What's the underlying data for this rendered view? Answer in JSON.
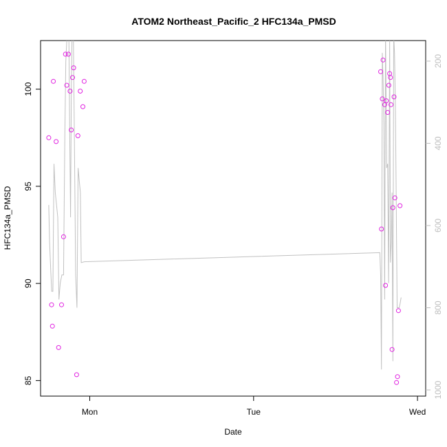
{
  "chart_data": {
    "type": "scatter",
    "title": "ATOM2 Northeast_Pacific_2 HFC134a_PMSD",
    "xlabel": "Date",
    "ylabel": "HFC134a_PMSD",
    "x_ticks": [
      "Mon",
      "Tue",
      "Wed"
    ],
    "y_ticks": [
      "85",
      "90",
      "95",
      "100"
    ],
    "y2_ticks": [
      "200",
      "400",
      "600",
      "800",
      "1000"
    ],
    "xlim": [
      -0.3,
      2.05
    ],
    "ylim": [
      84.2,
      102.5
    ],
    "y2lim": [
      1015,
      150
    ],
    "y2_reversed": true,
    "colors": {
      "points": "#e020e0",
      "line": "#c0c0c0",
      "right_axis": "#bebebe",
      "axes": "#000000"
    },
    "series": [
      {
        "kind": "points",
        "x": [
          -0.25,
          -0.233,
          -0.228,
          -0.222,
          -0.205,
          -0.19,
          -0.172,
          -0.16,
          -0.148,
          -0.14,
          -0.13,
          -0.12,
          -0.113,
          -0.105,
          -0.098,
          -0.08,
          -0.072,
          -0.058,
          -0.042,
          -0.034,
          1.775,
          1.78,
          1.785,
          1.79,
          1.8,
          1.805,
          1.81,
          1.818,
          1.825,
          1.83,
          1.835,
          1.838,
          1.845,
          1.85,
          1.857,
          1.862,
          1.872,
          1.878,
          1.884,
          1.893
        ],
        "y": [
          97.5,
          88.9,
          87.8,
          100.4,
          97.3,
          86.7,
          88.9,
          92.4,
          101.8,
          100.2,
          101.8,
          99.9,
          97.9,
          100.6,
          101.1,
          85.3,
          97.6,
          99.9,
          99.1,
          100.4,
          100.9,
          92.8,
          99.5,
          101.5,
          99.2,
          89.9,
          99.4,
          98.8,
          100.2,
          100.8,
          100.6,
          99.2,
          86.6,
          93.9,
          99.6,
          94.4,
          84.9,
          85.2,
          88.6,
          94.0
        ]
      },
      {
        "kind": "line",
        "axis": "right",
        "x": [
          -0.25,
          -0.245,
          -0.238,
          -0.232,
          -0.225,
          -0.218,
          -0.21,
          -0.195,
          -0.188,
          -0.18,
          -0.17,
          -0.16,
          -0.152,
          -0.146,
          -0.14,
          -0.132,
          -0.127,
          -0.122,
          -0.117,
          -0.112,
          -0.107,
          -0.1,
          -0.093,
          -0.086,
          -0.078,
          -0.071,
          -0.064,
          -0.057,
          -0.052,
          -0.033,
          1.77,
          1.775,
          1.78,
          1.785,
          1.79,
          1.795,
          1.8,
          1.805,
          1.812,
          1.818,
          1.824,
          1.83,
          1.835,
          1.84,
          1.845,
          1.85,
          1.855,
          1.86,
          1.865,
          1.87,
          1.876,
          1.882,
          1.888,
          1.894,
          1.9
        ],
        "y": [
          550,
          640,
          710,
          760,
          760,
          450,
          520,
          580,
          780,
          740,
          720,
          720,
          380,
          200,
          150,
          90,
          150,
          380,
          580,
          250,
          110,
          140,
          410,
          720,
          800,
          460,
          490,
          520,
          690,
          688,
          666,
          720,
          950,
          180,
          240,
          350,
          780,
          120,
          460,
          450,
          740,
          150,
          690,
          640,
          520,
          930,
          140,
          180,
          300,
          520,
          800,
          800,
          800,
          790,
          775
        ]
      }
    ]
  }
}
